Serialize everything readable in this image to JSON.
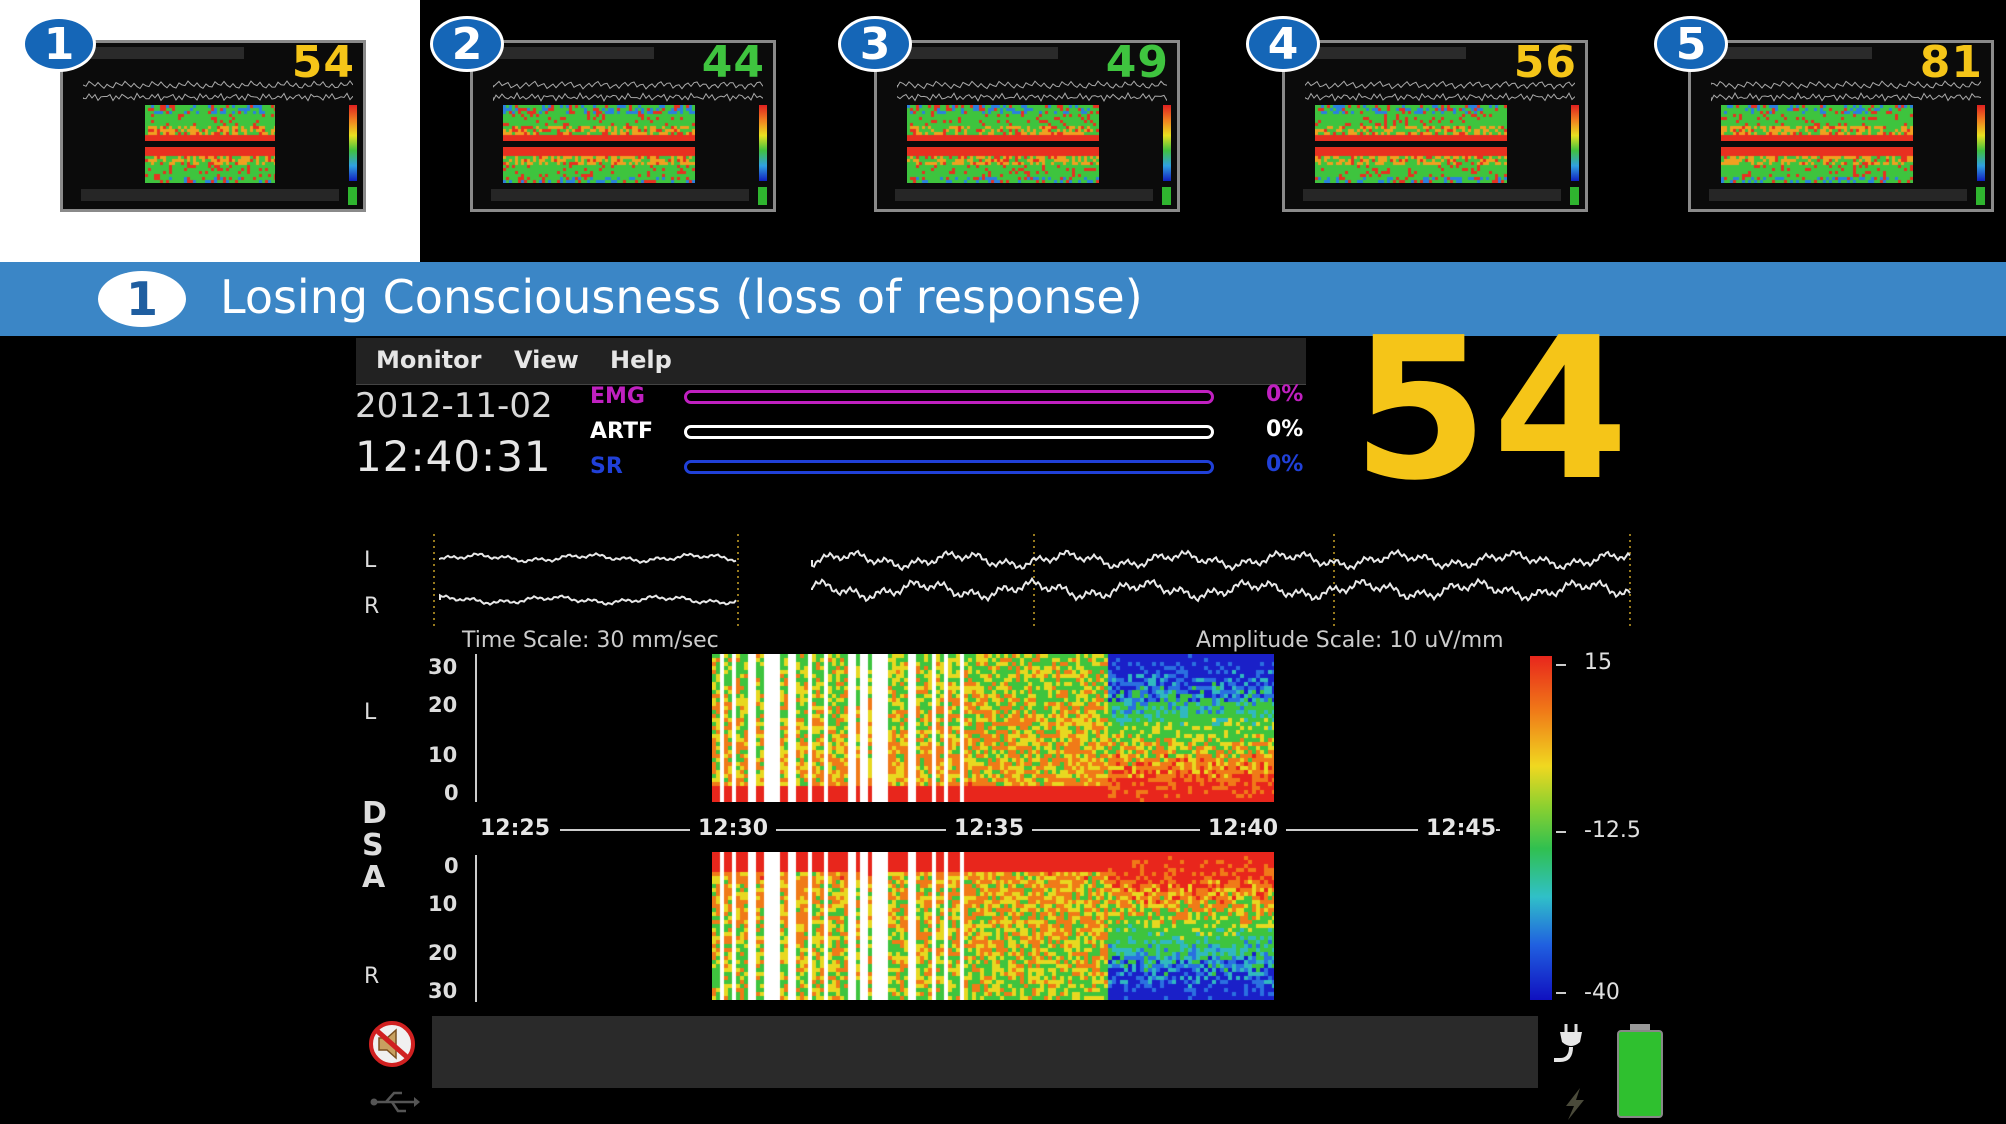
{
  "thumbnails": [
    {
      "number": "1",
      "score": "54",
      "score_color": "#f5c518",
      "selected": true
    },
    {
      "number": "2",
      "score": "44",
      "score_color": "#3fc43f",
      "selected": false
    },
    {
      "number": "3",
      "score": "49",
      "score_color": "#3fc43f",
      "selected": false
    },
    {
      "number": "4",
      "score": "56",
      "score_color": "#f5c518",
      "selected": false
    },
    {
      "number": "5",
      "score": "81",
      "score_color": "#f5c518",
      "selected": false
    }
  ],
  "section": {
    "number": "1",
    "title": "Losing Consciousness (loss of response)"
  },
  "menu": {
    "monitor": "Monitor",
    "view": "View",
    "help": "Help"
  },
  "datetime": {
    "date": "2012-11-02",
    "time": "12:40:31"
  },
  "metrics": [
    {
      "label": "EMG",
      "value": "0%",
      "color": "#c020c0"
    },
    {
      "label": "ARTF",
      "value": "0%",
      "color": "#ffffff"
    },
    {
      "label": "SR",
      "value": "0%",
      "color": "#2040d8"
    }
  ],
  "score": "54",
  "eeg": {
    "channel_left": "L",
    "channel_right": "R",
    "time_scale": "Time Scale: 30 mm/sec",
    "amplitude_scale": "Amplitude Scale: 10 uV/mm"
  },
  "dsa": {
    "letters": [
      "D",
      "S",
      "A"
    ],
    "top_channel": "L",
    "bottom_channel": "R",
    "top_ticks": [
      "30",
      "20",
      "10",
      "0"
    ],
    "bottom_ticks": [
      "0",
      "10",
      "20",
      "30"
    ],
    "time_ticks": [
      "12:25",
      "12:30",
      "12:35",
      "12:40",
      "12:45"
    ],
    "color_scale": [
      "15",
      "-12.5",
      "-40"
    ]
  },
  "icons": {
    "mute": "speaker-muted-icon",
    "usb": "usb-icon",
    "power": "power-plug-icon",
    "battery": "battery-icon",
    "charge": "lightning-icon"
  }
}
